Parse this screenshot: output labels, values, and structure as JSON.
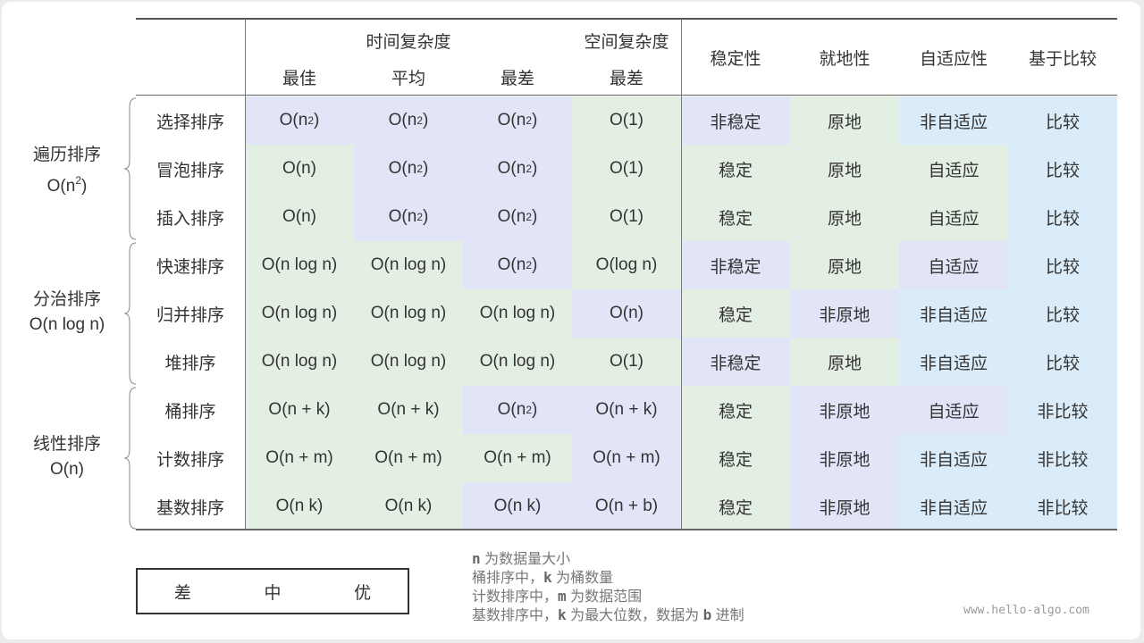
{
  "colors": {
    "poor": "#e1e5f7",
    "medium": "#daecf9",
    "good": "#e4efe4"
  },
  "header": {
    "time_group": "时间复杂度",
    "space_group": "空间复杂度",
    "sub": [
      "最佳",
      "平均",
      "最差",
      "最差"
    ],
    "props": [
      "稳定性",
      "就地性",
      "自适应性",
      "基于比较"
    ]
  },
  "groups": [
    {
      "name": "遍历排序",
      "complexity": "O(n²)"
    },
    {
      "name": "分治排序",
      "complexity": "O(n log n)"
    },
    {
      "name": "线性排序",
      "complexity": "O(n)"
    }
  ],
  "rows": [
    {
      "name": "选择排序",
      "cells": [
        "O(n²)",
        "O(n²)",
        "O(n²)",
        "O(1)",
        "非稳定",
        "原地",
        "非自适应",
        "比较"
      ],
      "ratings": [
        "poor",
        "poor",
        "poor",
        "good",
        "poor",
        "good",
        "medium",
        "medium"
      ]
    },
    {
      "name": "冒泡排序",
      "cells": [
        "O(n)",
        "O(n²)",
        "O(n²)",
        "O(1)",
        "稳定",
        "原地",
        "自适应",
        "比较"
      ],
      "ratings": [
        "good",
        "poor",
        "poor",
        "good",
        "good",
        "good",
        "good",
        "medium"
      ]
    },
    {
      "name": "插入排序",
      "cells": [
        "O(n)",
        "O(n²)",
        "O(n²)",
        "O(1)",
        "稳定",
        "原地",
        "自适应",
        "比较"
      ],
      "ratings": [
        "good",
        "poor",
        "poor",
        "good",
        "good",
        "good",
        "good",
        "medium"
      ]
    },
    {
      "name": "快速排序",
      "cells": [
        "O(n log n)",
        "O(n log n)",
        "O(n²)",
        "O(log n)",
        "非稳定",
        "原地",
        "自适应",
        "比较"
      ],
      "ratings": [
        "good",
        "good",
        "poor",
        "good",
        "poor",
        "good",
        "poor",
        "medium"
      ]
    },
    {
      "name": "归并排序",
      "cells": [
        "O(n log n)",
        "O(n log n)",
        "O(n log n)",
        "O(n)",
        "稳定",
        "非原地",
        "非自适应",
        "比较"
      ],
      "ratings": [
        "good",
        "good",
        "good",
        "poor",
        "good",
        "poor",
        "medium",
        "medium"
      ]
    },
    {
      "name": "堆排序",
      "cells": [
        "O(n log n)",
        "O(n log n)",
        "O(n log n)",
        "O(1)",
        "非稳定",
        "原地",
        "非自适应",
        "比较"
      ],
      "ratings": [
        "good",
        "good",
        "good",
        "good",
        "poor",
        "good",
        "medium",
        "medium"
      ]
    },
    {
      "name": "桶排序",
      "cells": [
        "O(n + k)",
        "O(n + k)",
        "O(n²)",
        "O(n + k)",
        "稳定",
        "非原地",
        "自适应",
        "非比较"
      ],
      "ratings": [
        "good",
        "good",
        "poor",
        "poor",
        "good",
        "poor",
        "poor",
        "medium"
      ]
    },
    {
      "name": "计数排序",
      "cells": [
        "O(n + m)",
        "O(n + m)",
        "O(n + m)",
        "O(n + m)",
        "稳定",
        "非原地",
        "非自适应",
        "非比较"
      ],
      "ratings": [
        "good",
        "good",
        "good",
        "poor",
        "good",
        "poor",
        "medium",
        "medium"
      ]
    },
    {
      "name": "基数排序",
      "cells": [
        "O(n k)",
        "O(n k)",
        "O(n k)",
        "O(n + b)",
        "稳定",
        "非原地",
        "非自适应",
        "非比较"
      ],
      "ratings": [
        "good",
        "good",
        "poor",
        "poor",
        "good",
        "poor",
        "medium",
        "medium"
      ]
    }
  ],
  "legend": {
    "poor": "差",
    "medium": "中",
    "good": "优"
  },
  "notes": [
    {
      "var": "n",
      "pre": "",
      "post": " 为数据量大小"
    },
    {
      "var": "k",
      "pre": "桶排序中，",
      "post": " 为桶数量"
    },
    {
      "var": "m",
      "pre": "计数排序中，",
      "post": " 为数据范围"
    },
    {
      "var": "k",
      "pre": "基数排序中，",
      "post": " 为最大位数，数据为 ",
      "var2": "b",
      "post2": " 进制"
    }
  ],
  "watermark": "www.hello-algo.com"
}
